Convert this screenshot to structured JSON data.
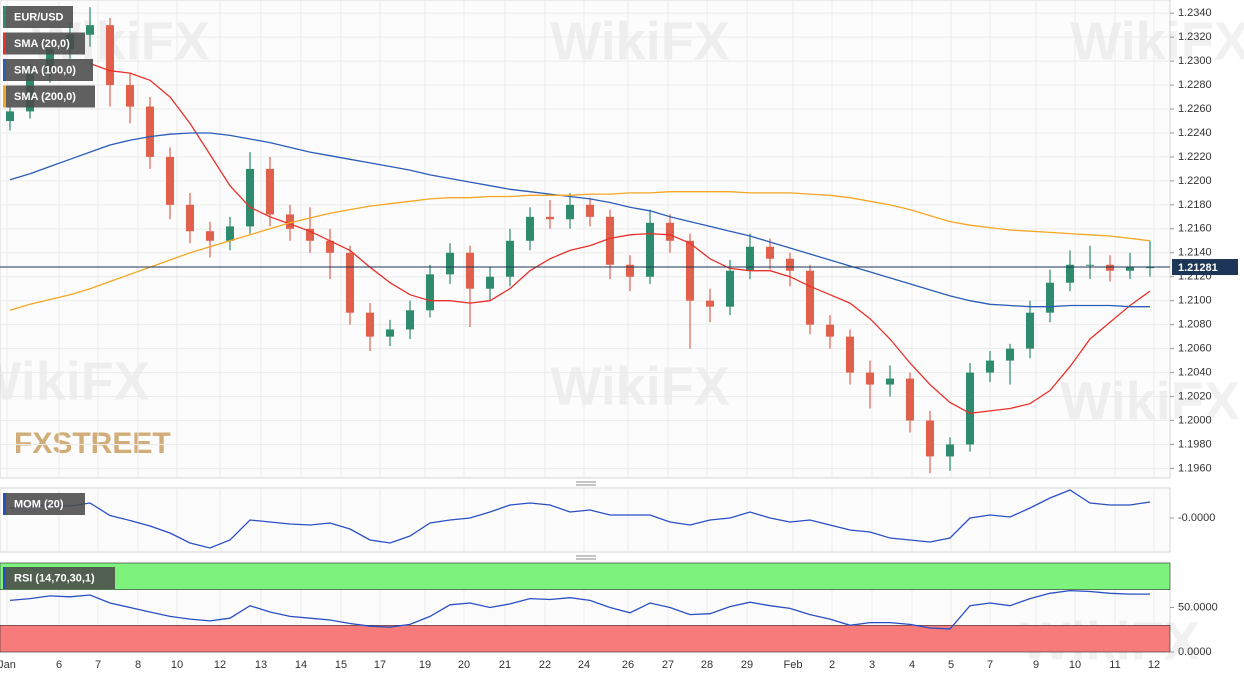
{
  "watermark": "WikiFX",
  "brand": "FXSTREET",
  "chart_data": [
    {
      "type": "candlestick",
      "xlim": [
        0,
        58.5
      ],
      "xticks": [
        {
          "value": 0.35,
          "label": "Jan"
        },
        {
          "value": 2.95,
          "label": "6"
        },
        {
          "value": 4.9,
          "label": "7"
        },
        {
          "value": 6.9,
          "label": "8"
        },
        {
          "value": 8.85,
          "label": "10"
        },
        {
          "value": 11.0,
          "label": "12"
        },
        {
          "value": 13.05,
          "label": "13"
        },
        {
          "value": 15.05,
          "label": "14"
        },
        {
          "value": 17.05,
          "label": "15"
        },
        {
          "value": 19.0,
          "label": "17"
        },
        {
          "value": 21.25,
          "label": "19"
        },
        {
          "value": 23.2,
          "label": "20"
        },
        {
          "value": 25.25,
          "label": "21"
        },
        {
          "value": 27.25,
          "label": "22"
        },
        {
          "value": 29.2,
          "label": "24"
        },
        {
          "value": 31.4,
          "label": "26"
        },
        {
          "value": 33.4,
          "label": "27"
        },
        {
          "value": 35.35,
          "label": "28"
        },
        {
          "value": 37.35,
          "label": "29"
        },
        {
          "value": 39.65,
          "label": "Feb"
        },
        {
          "value": 41.6,
          "label": "2"
        },
        {
          "value": 43.6,
          "label": "3"
        },
        {
          "value": 45.6,
          "label": "4"
        },
        {
          "value": 47.55,
          "label": "5"
        },
        {
          "value": 49.5,
          "label": "7"
        },
        {
          "value": 51.8,
          "label": "9"
        },
        {
          "value": 53.75,
          "label": "10"
        },
        {
          "value": 55.75,
          "label": "11"
        },
        {
          "value": 57.7,
          "label": "12"
        }
      ],
      "ylim": [
        1.1952,
        1.2351
      ],
      "yticks": [
        {
          "value": 1.234,
          "label": "1.2340"
        },
        {
          "value": 1.232,
          "label": "1.2320"
        },
        {
          "value": 1.23,
          "label": "1.2300"
        },
        {
          "value": 1.228,
          "label": "1.2280"
        },
        {
          "value": 1.226,
          "label": "1.2260"
        },
        {
          "value": 1.224,
          "label": "1.2240"
        },
        {
          "value": 1.222,
          "label": "1.2220"
        },
        {
          "value": 1.22,
          "label": "1.2200"
        },
        {
          "value": 1.218,
          "label": "1.2180"
        },
        {
          "value": 1.216,
          "label": "1.2160"
        },
        {
          "value": 1.214,
          "label": "1.2140"
        },
        {
          "value": 1.212,
          "label": "1.2120"
        },
        {
          "value": 1.21,
          "label": "1.2100"
        },
        {
          "value": 1.208,
          "label": "1.2080"
        },
        {
          "value": 1.206,
          "label": "1.2060"
        },
        {
          "value": 1.204,
          "label": "1.2040"
        },
        {
          "value": 1.202,
          "label": "1.2020"
        },
        {
          "value": 1.2,
          "label": "1.2000"
        },
        {
          "value": 1.198,
          "label": "1.1980"
        },
        {
          "value": 1.196,
          "label": "1.1960"
        }
      ],
      "grid": true,
      "last_price": 1.21281,
      "series": [
        {
          "name": "EUR/USD",
          "up_color": "#2e8b6e",
          "down_color": "#e0604c",
          "open": [
            1.225,
            1.2258,
            1.229,
            1.231,
            1.2322,
            1.233,
            1.228,
            1.2262,
            1.222,
            1.218,
            1.2158,
            1.215,
            1.2162,
            1.221,
            1.2172,
            1.216,
            1.215,
            1.214,
            1.209,
            1.207,
            1.2076,
            1.2092,
            1.2122,
            1.214,
            1.211,
            1.212,
            1.215,
            1.217,
            1.2168,
            1.218,
            1.217,
            1.213,
            1.212,
            1.2165,
            1.215,
            1.21,
            1.2095,
            1.2125,
            1.2145,
            1.2135,
            1.2125,
            1.208,
            1.207,
            1.204,
            1.203,
            1.2035,
            1.2,
            1.197,
            1.198,
            1.204,
            1.205,
            1.206,
            1.209,
            1.2115,
            1.213,
            1.213,
            1.2125,
            1.2128
          ],
          "high": [
            1.2262,
            1.2298,
            1.2318,
            1.2332,
            1.2345,
            1.2336,
            1.229,
            1.227,
            1.2228,
            1.219,
            1.2166,
            1.217,
            1.2224,
            1.222,
            1.218,
            1.2178,
            1.216,
            1.2146,
            1.2098,
            1.2084,
            1.21,
            1.213,
            1.2148,
            1.2146,
            1.2128,
            1.216,
            1.2178,
            1.2184,
            1.219,
            1.2186,
            1.2176,
            1.2138,
            1.2176,
            1.2172,
            1.2156,
            1.211,
            1.2134,
            1.2156,
            1.2152,
            1.214,
            1.213,
            1.2088,
            1.2076,
            1.205,
            1.2046,
            1.204,
            1.2008,
            1.1986,
            1.2048,
            1.2058,
            1.2064,
            1.21,
            1.2126,
            1.2142,
            1.2146,
            1.2138,
            1.214,
            1.215
          ],
          "low": [
            1.2242,
            1.2252,
            1.2282,
            1.2302,
            1.2312,
            1.2262,
            1.2248,
            1.221,
            1.2168,
            1.2148,
            1.2136,
            1.2142,
            1.2156,
            1.2162,
            1.215,
            1.214,
            1.2118,
            1.208,
            1.2058,
            1.2062,
            1.2068,
            1.2086,
            1.2114,
            1.2078,
            1.21,
            1.2112,
            1.2142,
            1.216,
            1.216,
            1.2162,
            1.2118,
            1.2108,
            1.2114,
            1.214,
            1.206,
            1.2082,
            1.2088,
            1.2118,
            1.2126,
            1.2112,
            1.2072,
            1.206,
            1.203,
            1.201,
            1.202,
            1.199,
            1.1956,
            1.1958,
            1.1974,
            1.2032,
            1.203,
            1.2052,
            1.2082,
            1.2108,
            1.2118,
            1.2116,
            1.2118,
            1.212
          ],
          "close": [
            1.2258,
            1.229,
            1.231,
            1.2322,
            1.233,
            1.228,
            1.2262,
            1.222,
            1.218,
            1.2158,
            1.215,
            1.2162,
            1.221,
            1.2172,
            1.216,
            1.215,
            1.214,
            1.209,
            1.207,
            1.2076,
            1.2092,
            1.2122,
            1.214,
            1.211,
            1.212,
            1.215,
            1.217,
            1.2168,
            1.218,
            1.217,
            1.213,
            1.212,
            1.2165,
            1.215,
            1.21,
            1.2095,
            1.2125,
            1.2145,
            1.2135,
            1.2125,
            1.208,
            1.207,
            1.204,
            1.203,
            1.2035,
            1.2,
            1.197,
            1.198,
            1.204,
            1.205,
            1.206,
            1.209,
            1.2115,
            1.213,
            1.213,
            1.2125,
            1.2128,
            1.2128
          ]
        },
        {
          "name": "SMA (20,0)",
          "color": "#e8312a",
          "values": [
            null,
            null,
            null,
            null,
            1.2298,
            1.2292,
            1.229,
            1.2284,
            1.227,
            1.2248,
            1.2222,
            1.2196,
            1.2178,
            1.217,
            1.2164,
            1.2158,
            1.215,
            1.2142,
            1.2128,
            1.2115,
            1.2105,
            1.21,
            1.21,
            1.2098,
            1.21,
            1.211,
            1.2125,
            1.2135,
            1.2142,
            1.2146,
            1.2152,
            1.2155,
            1.2156,
            1.2155,
            1.2148,
            1.2135,
            1.2127,
            1.2125,
            1.2125,
            1.212,
            1.2112,
            1.2105,
            1.2098,
            1.2085,
            1.2068,
            1.2048,
            1.203,
            1.2015,
            1.2006,
            1.2008,
            1.201,
            1.2014,
            1.2025,
            1.2045,
            1.2068,
            1.2082,
            1.2096,
            1.2108
          ]
        },
        {
          "name": "SMA (100,0)",
          "color": "#2a5cb8",
          "values": [
            1.2201,
            1.2206,
            1.2212,
            1.2218,
            1.2224,
            1.223,
            1.2234,
            1.2237,
            1.2239,
            1.224,
            1.224,
            1.2238,
            1.2235,
            1.2232,
            1.2228,
            1.2224,
            1.2221,
            1.2218,
            1.2215,
            1.2212,
            1.2209,
            1.2205,
            1.2202,
            1.2199,
            1.2196,
            1.2193,
            1.2191,
            1.2189,
            1.2187,
            1.2185,
            1.2182,
            1.2178,
            1.2175,
            1.217,
            1.2166,
            1.2162,
            1.2158,
            1.2154,
            1.2149,
            1.2144,
            1.2139,
            1.2134,
            1.2129,
            1.2124,
            1.2119,
            1.2114,
            1.2109,
            1.2104,
            1.21,
            1.2097,
            1.2096,
            1.2095,
            1.2095,
            1.2096,
            1.2096,
            1.2096,
            1.2095,
            1.2095
          ]
        },
        {
          "name": "SMA (200,0)",
          "color": "#f5a623",
          "values": [
            1.2092,
            1.2097,
            1.2101,
            1.2105,
            1.211,
            1.2116,
            1.2122,
            1.2128,
            1.2134,
            1.214,
            1.2145,
            1.215,
            1.2155,
            1.216,
            1.2165,
            1.2169,
            1.2173,
            1.2176,
            1.2179,
            1.2181,
            1.2183,
            1.2185,
            1.2186,
            1.2186,
            1.2187,
            1.2187,
            1.2188,
            1.2188,
            1.2188,
            1.2189,
            1.2189,
            1.219,
            1.219,
            1.2191,
            1.2191,
            1.2191,
            1.2191,
            1.219,
            1.219,
            1.219,
            1.2189,
            1.2188,
            1.2186,
            1.2183,
            1.218,
            1.2176,
            1.2171,
            1.2166,
            1.2163,
            1.2161,
            1.2159,
            1.2158,
            1.2157,
            1.2156,
            1.2155,
            1.2154,
            1.2152,
            1.215
          ]
        }
      ]
    },
    {
      "type": "line",
      "ylim": [
        -0.0136,
        0.012
      ],
      "yticks": [
        {
          "value": 0,
          "label": "-0.0000"
        }
      ],
      "series": [
        {
          "name": "MOM (20)",
          "color": "#2a4fc4",
          "values": [
            0.004,
            0.0048,
            0.0052,
            0.0048,
            0.006,
            0.001,
            -0.001,
            -0.0032,
            -0.006,
            -0.01,
            -0.012,
            -0.0088,
            -0.0008,
            -0.0016,
            -0.0024,
            -0.0028,
            -0.002,
            -0.0044,
            -0.0088,
            -0.01,
            -0.0072,
            -0.002,
            -0.0008,
            0.0,
            0.0024,
            0.0052,
            0.006,
            0.0052,
            0.0024,
            0.0032,
            0.0012,
            0.0012,
            0.0012,
            -0.0016,
            -0.0028,
            -0.0008,
            0.0,
            0.0024,
            0.0,
            -0.0016,
            -0.0008,
            -0.0028,
            -0.0048,
            -0.0056,
            -0.008,
            -0.0088,
            -0.0096,
            -0.008,
            0.0,
            0.0012,
            0.0004,
            0.004,
            0.008,
            0.0112,
            0.006,
            0.0052,
            0.0052,
            0.0064
          ]
        }
      ]
    },
    {
      "type": "line",
      "ylim": [
        0,
        100
      ],
      "yticks": [
        {
          "value": 50,
          "label": "50.0000"
        },
        {
          "value": 0,
          "label": "0.0000"
        }
      ],
      "bands": [
        {
          "from": 70,
          "to": 100,
          "color": "#7df27d"
        },
        {
          "from": 0,
          "to": 30,
          "color": "#f77b7b"
        }
      ],
      "series": [
        {
          "name": "RSI (14,70,30,1)",
          "color": "#2a4fc4",
          "values": [
            58,
            60,
            63,
            62,
            64,
            55,
            50,
            45,
            40,
            37,
            35,
            38,
            52,
            45,
            40,
            38,
            36,
            32,
            29,
            28,
            31,
            40,
            53,
            55,
            50,
            54,
            60,
            59,
            61,
            58,
            50,
            44,
            55,
            50,
            42,
            43,
            51,
            56,
            52,
            49,
            42,
            37,
            30,
            33,
            33,
            31,
            27,
            26,
            52,
            55,
            52,
            60,
            66,
            69,
            68,
            66,
            65,
            65
          ]
        }
      ]
    }
  ]
}
